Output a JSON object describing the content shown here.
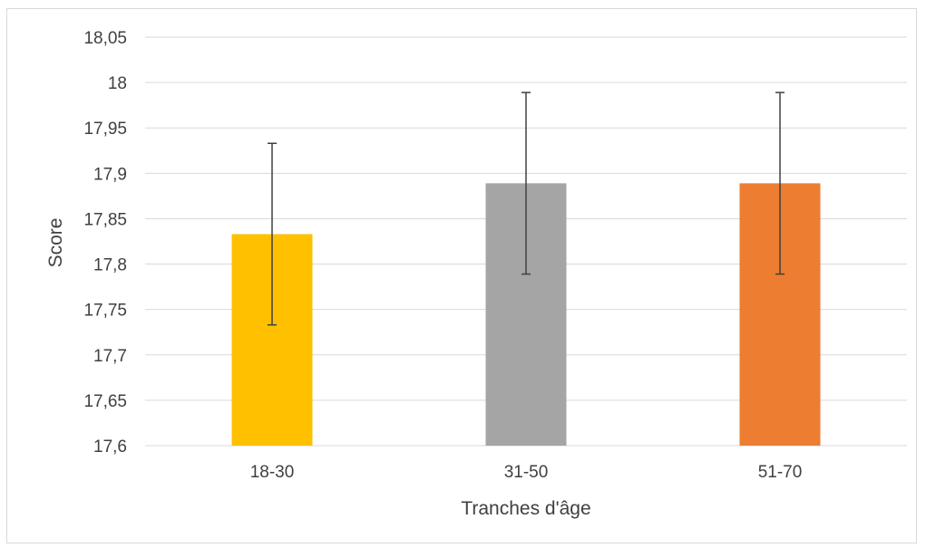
{
  "chart_data": {
    "type": "bar",
    "title": "",
    "xlabel": "Tranches d'âge",
    "ylabel": "Score",
    "categories": [
      "18-30",
      "31-50",
      "51-70"
    ],
    "values": [
      17.833,
      17.889,
      17.889
    ],
    "error": [
      0.1,
      0.1,
      0.1
    ],
    "colors": [
      "#ffc000",
      "#a5a5a5",
      "#ed7d31"
    ],
    "ylim": [
      17.6,
      18.05
    ],
    "yticks": [
      17.6,
      17.65,
      17.7,
      17.75,
      17.8,
      17.85,
      17.9,
      17.95,
      18,
      18.05
    ],
    "ytick_labels": [
      "17,6",
      "17,65",
      "17,7",
      "17,75",
      "17,8",
      "17,85",
      "17,9",
      "17,95",
      "18",
      "18,05"
    ],
    "grid": true,
    "legend": "none"
  }
}
